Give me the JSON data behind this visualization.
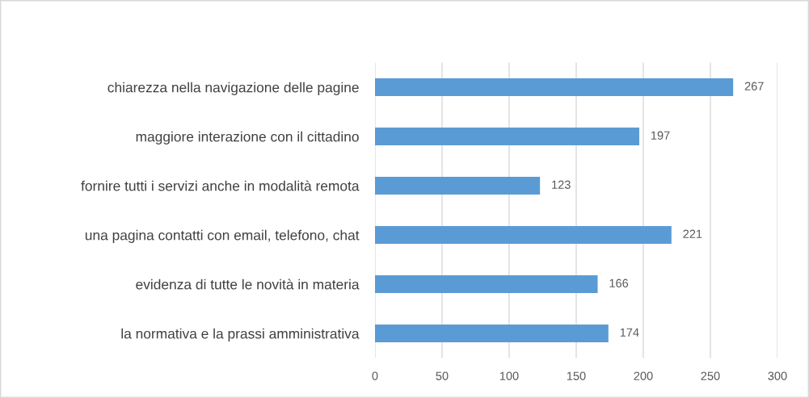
{
  "chart_data": {
    "type": "bar",
    "orientation": "horizontal",
    "categories": [
      "chiarezza nella navigazione delle pagine",
      "maggiore interazione con il cittadino",
      "fornire tutti i servizi anche in modalità remota",
      "una pagina contatti con email, telefono, chat",
      "evidenza di tutte le novità in materia",
      "la normativa e la prassi amministrativa"
    ],
    "values": [
      267,
      197,
      123,
      221,
      166,
      174
    ],
    "color": "#5b9bd5",
    "xlim": [
      0,
      300
    ],
    "xticks": [
      0,
      50,
      100,
      150,
      200,
      250,
      300
    ],
    "grid": "x",
    "data_labels": true
  }
}
